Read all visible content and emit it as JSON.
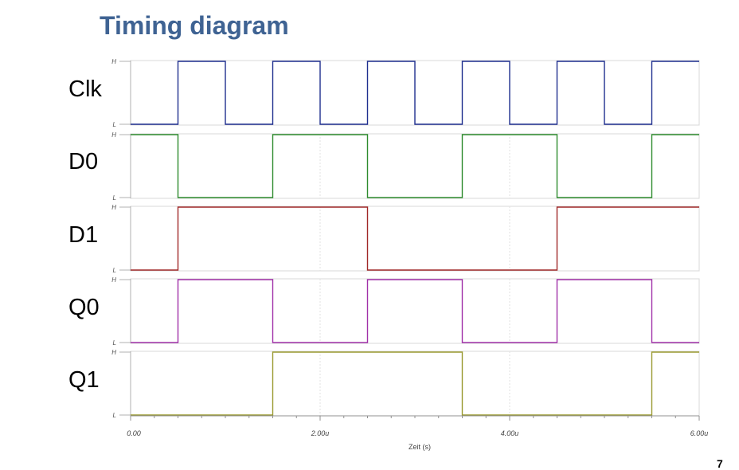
{
  "title": "Timing diagram",
  "page_number": "7",
  "level_high": "H",
  "level_low": "L",
  "chart_data": {
    "type": "line",
    "subtype": "digital-timing",
    "xlabel": "Zeit (s)",
    "xlim": [
      0,
      6.0
    ],
    "x_unit": "u",
    "x_ticks": [
      "0.00",
      "2.00u",
      "4.00u",
      "6.00u"
    ],
    "grid": true,
    "series": [
      {
        "name": "Clk",
        "color": "#1f2f8f",
        "initial": 0,
        "transitions": [
          0.5,
          1.0,
          1.5,
          2.0,
          2.5,
          3.0,
          3.5,
          4.0,
          4.5,
          5.0,
          5.5
        ]
      },
      {
        "name": "D0",
        "color": "#2e8b2e",
        "initial": 1,
        "transitions": [
          0.5,
          1.5,
          2.5,
          3.5,
          4.5,
          5.5
        ]
      },
      {
        "name": "D1",
        "color": "#a02828",
        "initial": 0,
        "transitions": [
          0.5,
          2.5,
          4.5
        ]
      },
      {
        "name": "Q0",
        "color": "#a030a8",
        "initial": 0,
        "transitions": [
          0.5,
          1.5,
          2.5,
          3.5,
          4.5,
          5.5
        ]
      },
      {
        "name": "Q1",
        "color": "#9a9a30",
        "initial": 0,
        "transitions": [
          1.5,
          3.5,
          5.5
        ]
      }
    ]
  }
}
